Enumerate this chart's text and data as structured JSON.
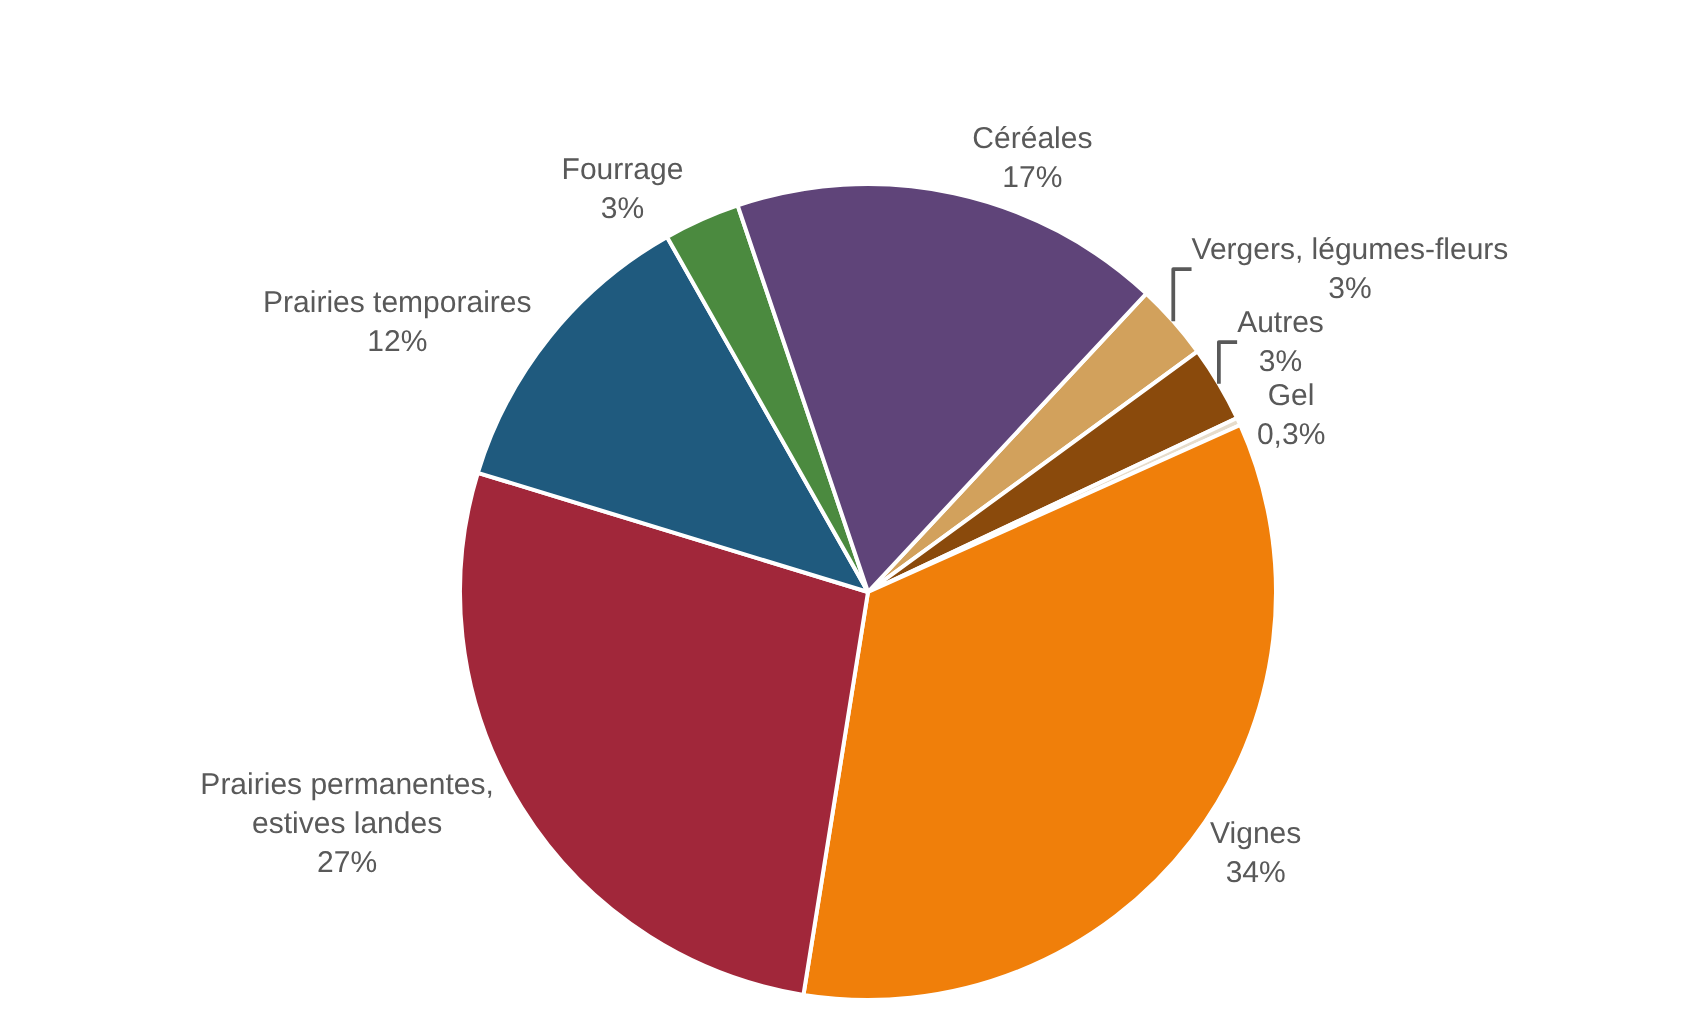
{
  "chart_data": {
    "type": "pie",
    "categories": [
      "Vergers, légumes-fleurs",
      "Autres",
      "Gel",
      "Vignes",
      "Prairies permanentes,\nestives landes",
      "Prairies temporaires",
      "Fourrage",
      "Céréales"
    ],
    "values": [
      3,
      3,
      0.3,
      34,
      27,
      12,
      3,
      17
    ],
    "value_labels": [
      "3%",
      "3%",
      "0,3%",
      "34%",
      "27%",
      "12%",
      "3%",
      "17%"
    ],
    "colors": [
      "#d2a15c",
      "#8a4a0c",
      "#e6dccb",
      "#f07f0a",
      "#a1273a",
      "#1f5a7e",
      "#4b8a3f",
      "#5f4479"
    ],
    "legend": false
  }
}
